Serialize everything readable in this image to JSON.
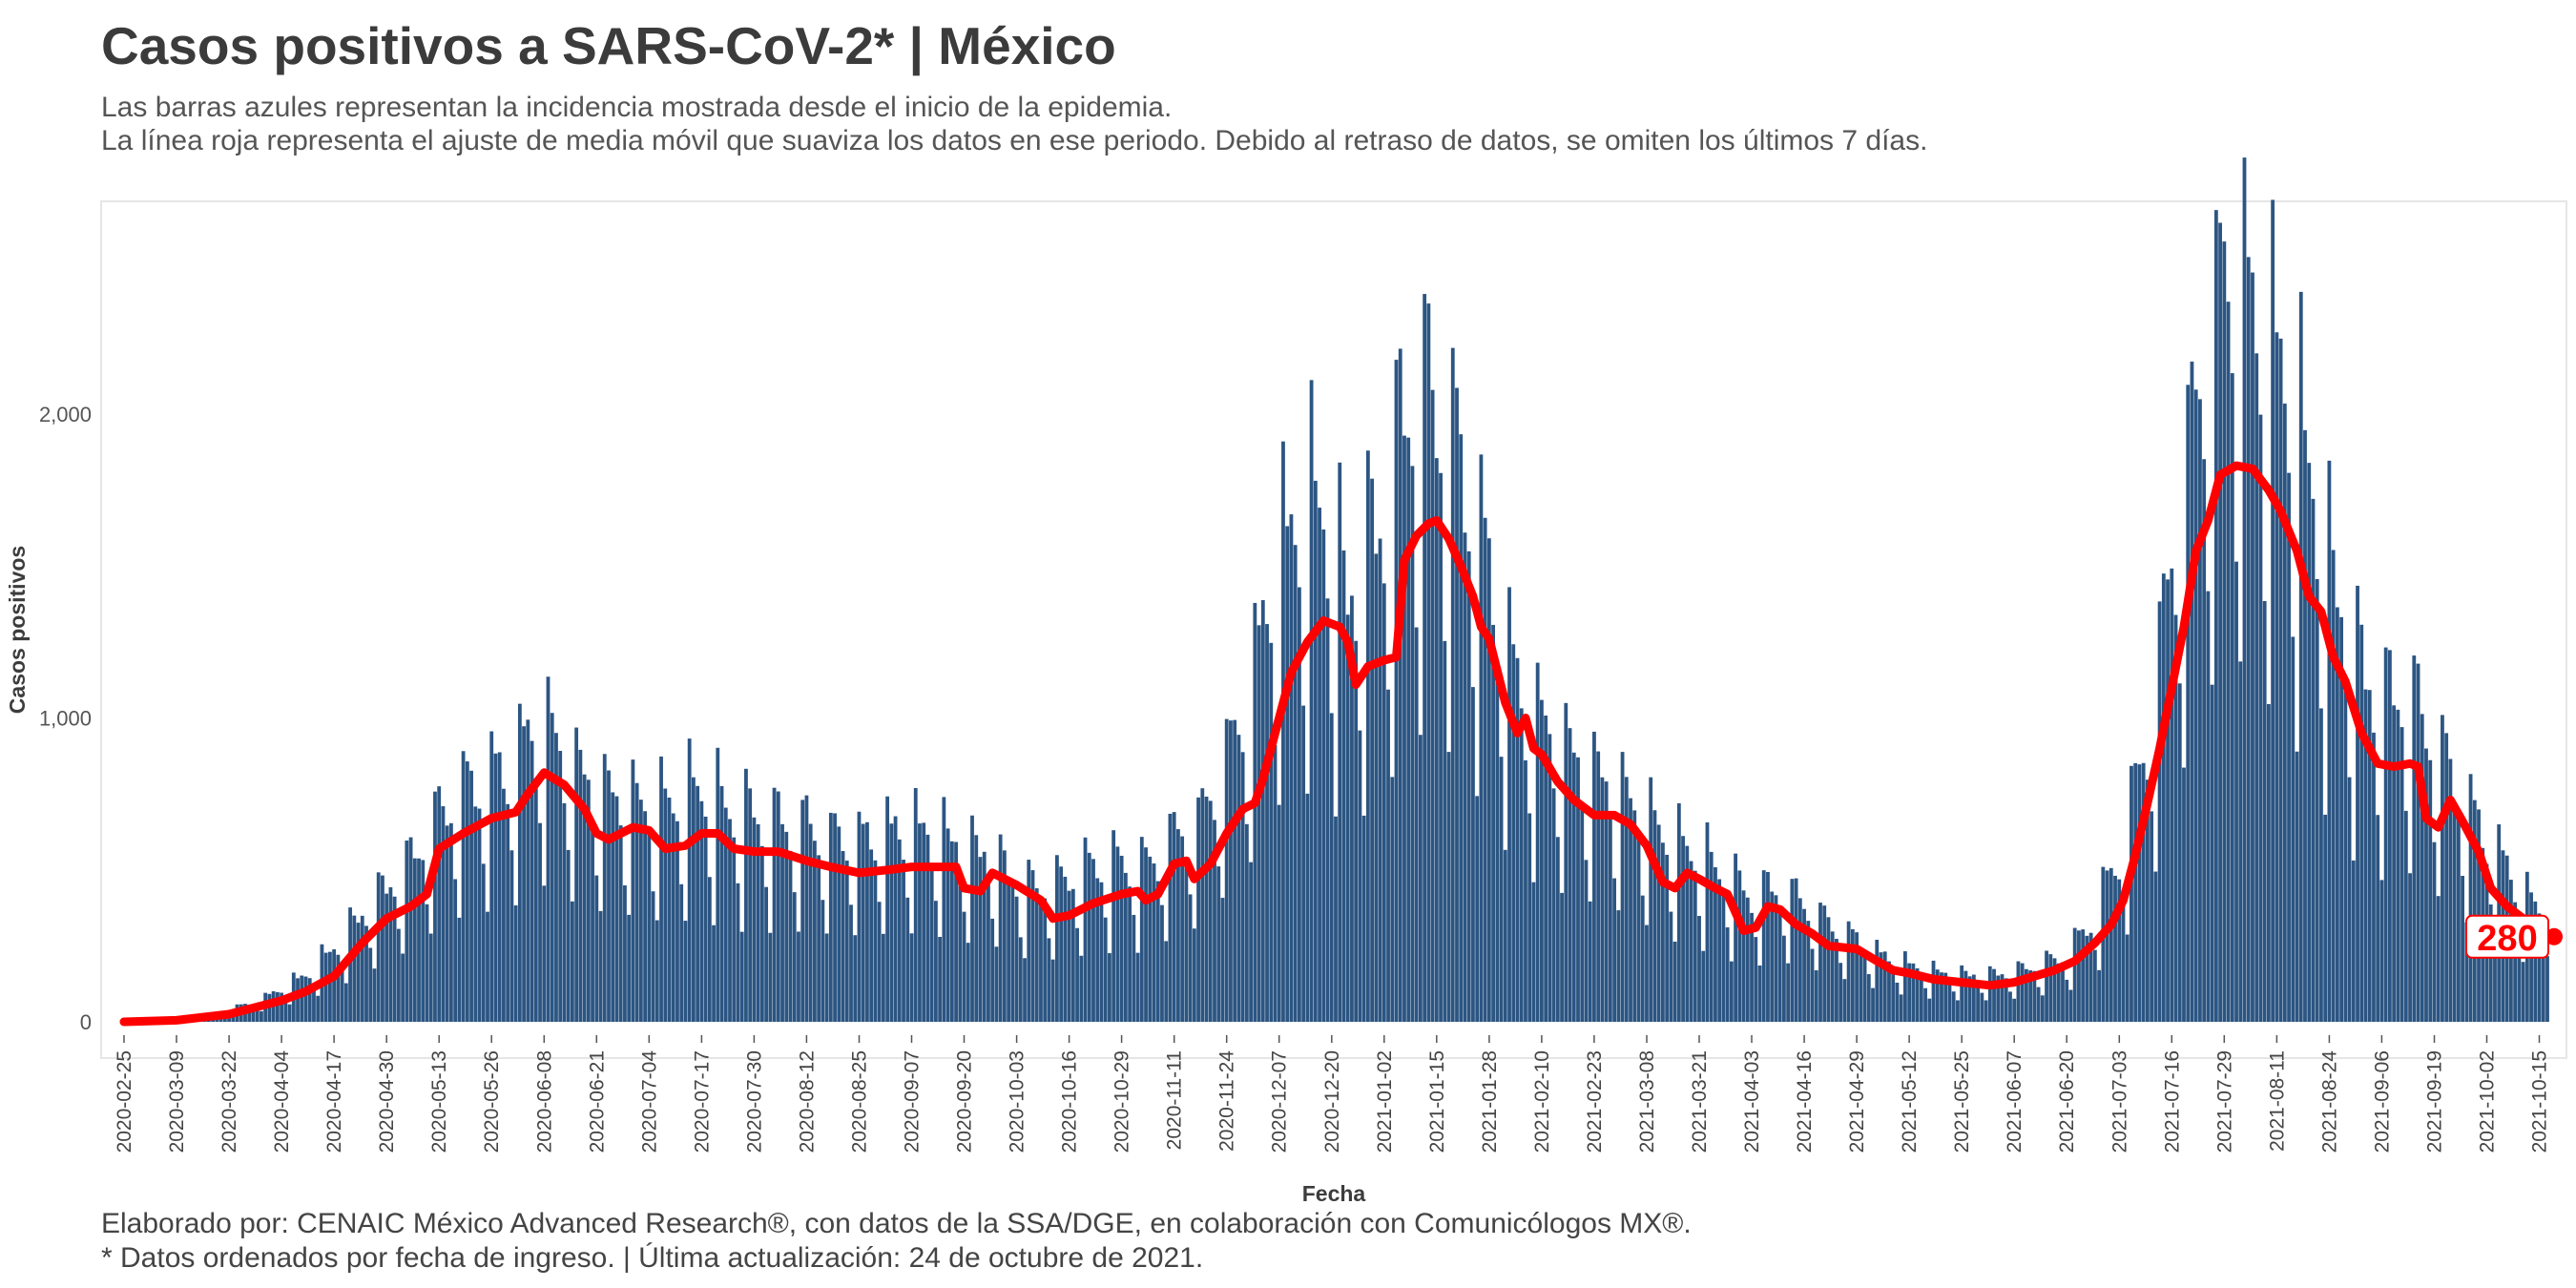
{
  "header": {
    "title": "Casos positivos a SARS-CoV-2* | México",
    "subtitle_line1": "Las barras azules representan la incidencia mostrada desde el inicio de la epidemia.",
    "subtitle_line2": "La línea roja representa el ajuste de media móvil que suaviza los datos en ese periodo. Debido al retraso de datos, se omiten los últimos 7 días."
  },
  "footer": {
    "credit": "Elaborado por: CENAIC México Advanced Research®, con datos de la SSA/DGE, en colaboración con Comunicólogos MX®.",
    "note": "* Datos ordenados por fecha de ingreso. | Última actualización: 24 de octubre de 2021."
  },
  "colors": {
    "bars": "#2c5582",
    "line": "#ff0000",
    "panel_border": "#e6e6e6",
    "text": "#3c3c3c"
  },
  "chart_data": {
    "type": "bar",
    "title": "",
    "xlabel": "Fecha",
    "ylabel": "Casos positivos",
    "ylim": [
      0,
      2600
    ],
    "yticks": [
      0,
      1000,
      2000
    ],
    "ytick_labels": [
      "0",
      "1,000",
      "2,000"
    ],
    "x_start_date": "2020-02-25",
    "x_end_date": "2021-10-17",
    "xticks": [
      "2020-02-25",
      "2020-03-09",
      "2020-03-22",
      "2020-04-04",
      "2020-04-17",
      "2020-04-30",
      "2020-05-13",
      "2020-05-26",
      "2020-06-08",
      "2020-06-21",
      "2020-07-04",
      "2020-07-17",
      "2020-07-30",
      "2020-08-12",
      "2020-08-25",
      "2020-09-07",
      "2020-09-20",
      "2020-10-03",
      "2020-10-16",
      "2020-10-29",
      "2020-11-11",
      "2020-11-24",
      "2020-12-07",
      "2020-12-20",
      "2021-01-02",
      "2021-01-15",
      "2021-01-28",
      "2021-02-10",
      "2021-02-23",
      "2021-03-08",
      "2021-03-21",
      "2021-04-03",
      "2021-04-16",
      "2021-04-29",
      "2021-05-12",
      "2021-05-25",
      "2021-06-07",
      "2021-06-20",
      "2021-07-03",
      "2021-07-16",
      "2021-07-29",
      "2021-08-11",
      "2021-08-24",
      "2021-09-06",
      "2021-09-19",
      "2021-10-02",
      "2021-10-15"
    ],
    "series": [
      {
        "name": "Incidencia diaria",
        "kind": "bar",
        "points": [
          [
            "2020-02-25",
            2
          ],
          [
            "2020-03-09",
            5
          ],
          [
            "2020-03-15",
            15
          ],
          [
            "2020-03-22",
            40
          ],
          [
            "2020-03-29",
            60
          ],
          [
            "2020-04-04",
            100
          ],
          [
            "2020-04-10",
            140
          ],
          [
            "2020-04-17",
            220
          ],
          [
            "2020-04-24",
            320
          ],
          [
            "2020-04-30",
            400
          ],
          [
            "2020-05-06",
            480
          ],
          [
            "2020-05-13",
            620
          ],
          [
            "2020-05-19",
            700
          ],
          [
            "2020-05-26",
            740
          ],
          [
            "2020-06-01",
            780
          ],
          [
            "2020-06-05",
            880
          ],
          [
            "2020-06-08",
            900
          ],
          [
            "2020-06-12",
            820
          ],
          [
            "2020-06-16",
            760
          ],
          [
            "2020-06-21",
            700
          ],
          [
            "2020-06-27",
            680
          ],
          [
            "2020-07-04",
            650
          ],
          [
            "2020-07-10",
            660
          ],
          [
            "2020-07-17",
            700
          ],
          [
            "2020-07-23",
            640
          ],
          [
            "2020-07-30",
            620
          ],
          [
            "2020-08-05",
            600
          ],
          [
            "2020-08-12",
            590
          ],
          [
            "2020-08-18",
            560
          ],
          [
            "2020-08-25",
            550
          ],
          [
            "2020-09-01",
            570
          ],
          [
            "2020-09-07",
            580
          ],
          [
            "2020-09-14",
            560
          ],
          [
            "2020-09-20",
            520
          ],
          [
            "2020-09-27",
            500
          ],
          [
            "2020-10-03",
            420
          ],
          [
            "2020-10-09",
            400
          ],
          [
            "2020-10-16",
            430
          ],
          [
            "2020-10-22",
            470
          ],
          [
            "2020-10-29",
            480
          ],
          [
            "2020-11-04",
            470
          ],
          [
            "2020-11-11",
            560
          ],
          [
            "2020-11-17",
            600
          ],
          [
            "2020-11-24",
            800
          ],
          [
            "2020-11-30",
            1000
          ],
          [
            "2020-12-03",
            1200
          ],
          [
            "2020-12-07",
            1400
          ],
          [
            "2020-12-12",
            1500
          ],
          [
            "2020-12-16",
            1550
          ],
          [
            "2020-12-20",
            1450
          ],
          [
            "2020-12-24",
            1250
          ],
          [
            "2020-12-28",
            1400
          ],
          [
            "2021-01-02",
            1500
          ],
          [
            "2021-01-05",
            1700
          ],
          [
            "2021-01-08",
            1850
          ],
          [
            "2021-01-12",
            1900
          ],
          [
            "2021-01-15",
            1850
          ],
          [
            "2021-01-19",
            1750
          ],
          [
            "2021-01-24",
            1550
          ],
          [
            "2021-01-28",
            1350
          ],
          [
            "2021-02-02",
            1100
          ],
          [
            "2021-02-06",
            950
          ],
          [
            "2021-02-10",
            900
          ],
          [
            "2021-02-16",
            820
          ],
          [
            "2021-02-23",
            750
          ],
          [
            "2021-03-01",
            700
          ],
          [
            "2021-03-08",
            620
          ],
          [
            "2021-03-14",
            540
          ],
          [
            "2021-03-21",
            500
          ],
          [
            "2021-03-27",
            440
          ],
          [
            "2021-04-03",
            380
          ],
          [
            "2021-04-10",
            400
          ],
          [
            "2021-04-16",
            360
          ],
          [
            "2021-04-22",
            300
          ],
          [
            "2021-04-29",
            250
          ],
          [
            "2021-05-05",
            200
          ],
          [
            "2021-05-12",
            170
          ],
          [
            "2021-05-18",
            150
          ],
          [
            "2021-05-25",
            140
          ],
          [
            "2021-06-01",
            140
          ],
          [
            "2021-06-07",
            150
          ],
          [
            "2021-06-13",
            170
          ],
          [
            "2021-06-20",
            200
          ],
          [
            "2021-06-26",
            300
          ],
          [
            "2021-07-03",
            500
          ],
          [
            "2021-07-08",
            750
          ],
          [
            "2021-07-12",
            1000
          ],
          [
            "2021-07-16",
            1400
          ],
          [
            "2021-07-20",
            1700
          ],
          [
            "2021-07-24",
            2000
          ],
          [
            "2021-07-29",
            2250
          ],
          [
            "2021-08-02",
            2250
          ],
          [
            "2021-08-06",
            2100
          ],
          [
            "2021-08-11",
            2000
          ],
          [
            "2021-08-15",
            1850
          ],
          [
            "2021-08-20",
            1600
          ],
          [
            "2021-08-24",
            1350
          ],
          [
            "2021-08-30",
            1100
          ],
          [
            "2021-09-06",
            950
          ],
          [
            "2021-09-12",
            1000
          ],
          [
            "2021-09-19",
            850
          ],
          [
            "2021-09-25",
            700
          ],
          [
            "2021-10-02",
            550
          ],
          [
            "2021-10-08",
            450
          ],
          [
            "2021-10-12",
            380
          ],
          [
            "2021-10-15",
            330
          ],
          [
            "2021-10-17",
            300
          ]
        ]
      },
      {
        "name": "Media móvil",
        "kind": "line",
        "points": [
          [
            "2020-02-25",
            0
          ],
          [
            "2020-03-09",
            5
          ],
          [
            "2020-03-22",
            25
          ],
          [
            "2020-04-04",
            70
          ],
          [
            "2020-04-10",
            100
          ],
          [
            "2020-04-17",
            150
          ],
          [
            "2020-04-24",
            260
          ],
          [
            "2020-04-30",
            340
          ],
          [
            "2020-05-06",
            380
          ],
          [
            "2020-05-10",
            420
          ],
          [
            "2020-05-13",
            570
          ],
          [
            "2020-05-19",
            620
          ],
          [
            "2020-05-26",
            670
          ],
          [
            "2020-06-01",
            690
          ],
          [
            "2020-06-04",
            750
          ],
          [
            "2020-06-08",
            820
          ],
          [
            "2020-06-13",
            780
          ],
          [
            "2020-06-18",
            700
          ],
          [
            "2020-06-21",
            620
          ],
          [
            "2020-06-24",
            600
          ],
          [
            "2020-06-30",
            640
          ],
          [
            "2020-07-04",
            630
          ],
          [
            "2020-07-08",
            570
          ],
          [
            "2020-07-13",
            580
          ],
          [
            "2020-07-17",
            620
          ],
          [
            "2020-07-21",
            620
          ],
          [
            "2020-07-25",
            570
          ],
          [
            "2020-07-30",
            560
          ],
          [
            "2020-08-05",
            560
          ],
          [
            "2020-08-12",
            530
          ],
          [
            "2020-08-18",
            510
          ],
          [
            "2020-08-25",
            490
          ],
          [
            "2020-09-01",
            500
          ],
          [
            "2020-09-07",
            510
          ],
          [
            "2020-09-14",
            510
          ],
          [
            "2020-09-18",
            510
          ],
          [
            "2020-09-20",
            440
          ],
          [
            "2020-09-24",
            430
          ],
          [
            "2020-09-27",
            490
          ],
          [
            "2020-10-03",
            450
          ],
          [
            "2020-10-09",
            400
          ],
          [
            "2020-10-12",
            340
          ],
          [
            "2020-10-16",
            350
          ],
          [
            "2020-10-22",
            390
          ],
          [
            "2020-10-29",
            420
          ],
          [
            "2020-11-02",
            430
          ],
          [
            "2020-11-04",
            400
          ],
          [
            "2020-11-07",
            420
          ],
          [
            "2020-11-11",
            520
          ],
          [
            "2020-11-14",
            530
          ],
          [
            "2020-11-16",
            470
          ],
          [
            "2020-11-20",
            520
          ],
          [
            "2020-11-24",
            620
          ],
          [
            "2020-11-28",
            700
          ],
          [
            "2020-12-01",
            720
          ],
          [
            "2020-12-03",
            800
          ],
          [
            "2020-12-07",
            1000
          ],
          [
            "2020-12-10",
            1150
          ],
          [
            "2020-12-14",
            1250
          ],
          [
            "2020-12-18",
            1320
          ],
          [
            "2020-12-22",
            1300
          ],
          [
            "2020-12-24",
            1250
          ],
          [
            "2020-12-26",
            1110
          ],
          [
            "2020-12-29",
            1170
          ],
          [
            "2021-01-02",
            1190
          ],
          [
            "2021-01-05",
            1200
          ],
          [
            "2021-01-07",
            1520
          ],
          [
            "2021-01-10",
            1600
          ],
          [
            "2021-01-13",
            1640
          ],
          [
            "2021-01-15",
            1650
          ],
          [
            "2021-01-18",
            1590
          ],
          [
            "2021-01-21",
            1500
          ],
          [
            "2021-01-24",
            1400
          ],
          [
            "2021-01-26",
            1300
          ],
          [
            "2021-01-28",
            1260
          ],
          [
            "2021-02-01",
            1050
          ],
          [
            "2021-02-04",
            950
          ],
          [
            "2021-02-06",
            1000
          ],
          [
            "2021-02-08",
            900
          ],
          [
            "2021-02-10",
            880
          ],
          [
            "2021-02-14",
            790
          ],
          [
            "2021-02-18",
            730
          ],
          [
            "2021-02-23",
            680
          ],
          [
            "2021-02-28",
            680
          ],
          [
            "2021-03-04",
            650
          ],
          [
            "2021-03-08",
            580
          ],
          [
            "2021-03-12",
            460
          ],
          [
            "2021-03-15",
            440
          ],
          [
            "2021-03-18",
            490
          ],
          [
            "2021-03-21",
            470
          ],
          [
            "2021-03-25",
            440
          ],
          [
            "2021-03-28",
            420
          ],
          [
            "2021-04-01",
            300
          ],
          [
            "2021-04-04",
            310
          ],
          [
            "2021-04-07",
            380
          ],
          [
            "2021-04-10",
            370
          ],
          [
            "2021-04-14",
            320
          ],
          [
            "2021-04-18",
            290
          ],
          [
            "2021-04-22",
            250
          ],
          [
            "2021-04-29",
            240
          ],
          [
            "2021-05-04",
            200
          ],
          [
            "2021-05-08",
            170
          ],
          [
            "2021-05-12",
            160
          ],
          [
            "2021-05-18",
            140
          ],
          [
            "2021-05-25",
            130
          ],
          [
            "2021-06-01",
            120
          ],
          [
            "2021-06-07",
            130
          ],
          [
            "2021-06-12",
            150
          ],
          [
            "2021-06-17",
            170
          ],
          [
            "2021-06-22",
            200
          ],
          [
            "2021-06-27",
            260
          ],
          [
            "2021-07-01",
            320
          ],
          [
            "2021-07-04",
            400
          ],
          [
            "2021-07-07",
            550
          ],
          [
            "2021-07-10",
            720
          ],
          [
            "2021-07-13",
            900
          ],
          [
            "2021-07-16",
            1100
          ],
          [
            "2021-07-19",
            1300
          ],
          [
            "2021-07-22",
            1550
          ],
          [
            "2021-07-25",
            1650
          ],
          [
            "2021-07-28",
            1800
          ],
          [
            "2021-08-01",
            1830
          ],
          [
            "2021-08-05",
            1820
          ],
          [
            "2021-08-09",
            1750
          ],
          [
            "2021-08-12",
            1680
          ],
          [
            "2021-08-16",
            1550
          ],
          [
            "2021-08-19",
            1400
          ],
          [
            "2021-08-22",
            1350
          ],
          [
            "2021-08-25",
            1200
          ],
          [
            "2021-08-28",
            1120
          ],
          [
            "2021-09-01",
            950
          ],
          [
            "2021-09-05",
            850
          ],
          [
            "2021-09-09",
            840
          ],
          [
            "2021-09-13",
            850
          ],
          [
            "2021-09-15",
            840
          ],
          [
            "2021-09-17",
            670
          ],
          [
            "2021-09-20",
            640
          ],
          [
            "2021-09-23",
            730
          ],
          [
            "2021-09-26",
            660
          ],
          [
            "2021-09-30",
            560
          ],
          [
            "2021-10-03",
            440
          ],
          [
            "2021-10-07",
            380
          ],
          [
            "2021-10-11",
            340
          ],
          [
            "2021-10-15",
            300
          ],
          [
            "2021-10-17",
            280
          ]
        ]
      }
    ],
    "last_value": 280,
    "last_value_label": "280",
    "grid": false,
    "legend": "none"
  }
}
